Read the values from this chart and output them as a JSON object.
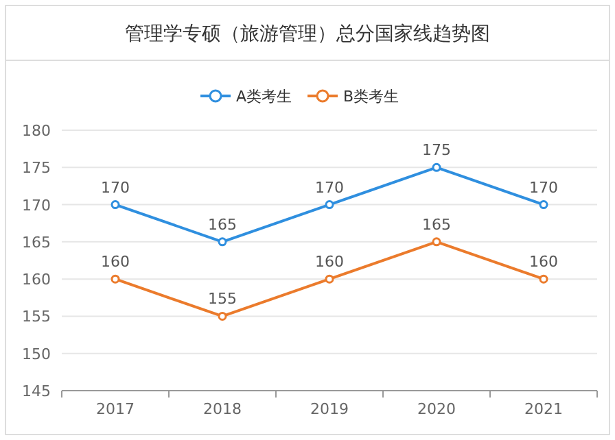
{
  "chart_data": {
    "type": "line",
    "title": "管理学专硕（旅游管理）总分国家线趋势图",
    "categories": [
      "2017",
      "2018",
      "2019",
      "2020",
      "2021"
    ],
    "series": [
      {
        "name": "A类考生",
        "color": "#2f8fdf",
        "values": [
          170,
          165,
          170,
          175,
          170
        ]
      },
      {
        "name": "B类考生",
        "color": "#eb7b2c",
        "values": [
          160,
          155,
          160,
          165,
          160
        ]
      }
    ],
    "ylim": [
      145,
      180
    ],
    "yticks": [
      145,
      150,
      155,
      160,
      165,
      170,
      175,
      180
    ],
    "grid": "y",
    "legend": "top",
    "marker": "circle",
    "line_style": "solid",
    "data_labels": true
  }
}
